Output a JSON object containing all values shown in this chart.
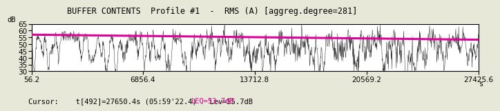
{
  "title": "BUFFER CONTENTS  Profile #1  -  RMS (A) [aggreg.degree=281]",
  "ylabel": "dB",
  "xlabel_unit": "s",
  "xlim": [
    56.2,
    27425.6
  ],
  "ylim": [
    30,
    65
  ],
  "yticks": [
    30,
    35,
    40,
    45,
    50,
    55,
    60,
    65
  ],
  "xticks": [
    56.2,
    6856.4,
    13712.8,
    20569.2,
    27425.6
  ],
  "xtick_labels": [
    "56.2",
    "6856.4",
    "13712.8",
    "20569.2",
    "27425.6"
  ],
  "cursor_text": "Cursor:    t[492]=27650.4s (05:59'22.4)   Lev=55.7dB  ",
  "leq_text": "LEQ=53.7dB",
  "signal_color": "#000000",
  "leq_line_color": "#e0009a",
  "background_color": "#e8e8d8",
  "plot_bg_color": "#ffffff",
  "x_start": 56.2,
  "x_end": 27425.6,
  "leq_start": 57.0,
  "leq_end": 53.3,
  "num_points": 1400,
  "seed": 99,
  "title_fontsize": 8.5,
  "tick_fontsize": 7.5,
  "cursor_fontsize": 7.5
}
